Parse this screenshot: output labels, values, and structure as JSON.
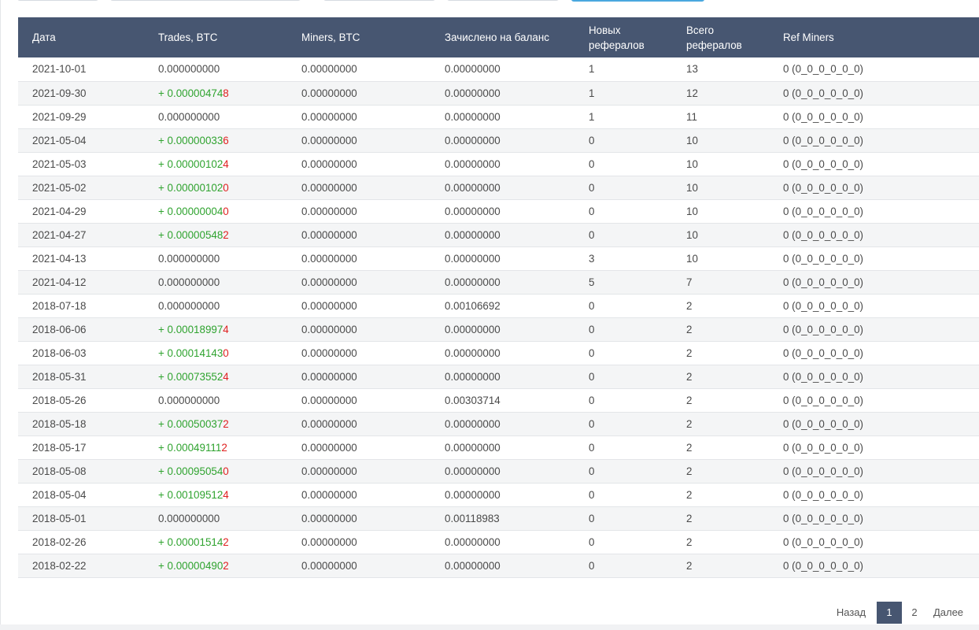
{
  "table": {
    "headers": {
      "date": "Дата",
      "trades": "Trades, BTC",
      "miners": "Miners, BTC",
      "credited": "Зачислено на баланс",
      "new_refs": "Новых рефералов",
      "total_refs": "Всего рефералов",
      "ref_miners": "Ref Miners"
    },
    "rows": [
      {
        "date": "2021-10-01",
        "trade_sign": "",
        "trade_main": "0.000000000",
        "trade_last": "",
        "miners": "0.00000000",
        "credited": "0.00000000",
        "credited_positive": false,
        "new_refs": "1",
        "total_refs": "13",
        "ref_miners": "0 (0_0_0_0_0_0)"
      },
      {
        "date": "2021-09-30",
        "trade_sign": "+ ",
        "trade_main": "0.00000474",
        "trade_last": "8",
        "miners": "0.00000000",
        "credited": "0.00000000",
        "credited_positive": false,
        "new_refs": "1",
        "total_refs": "12",
        "ref_miners": "0 (0_0_0_0_0_0)"
      },
      {
        "date": "2021-09-29",
        "trade_sign": "",
        "trade_main": "0.000000000",
        "trade_last": "",
        "miners": "0.00000000",
        "credited": "0.00000000",
        "credited_positive": false,
        "new_refs": "1",
        "total_refs": "11",
        "ref_miners": "0 (0_0_0_0_0_0)"
      },
      {
        "date": "2021-05-04",
        "trade_sign": "+ ",
        "trade_main": "0.00000033",
        "trade_last": "6",
        "miners": "0.00000000",
        "credited": "0.00000000",
        "credited_positive": false,
        "new_refs": "0",
        "total_refs": "10",
        "ref_miners": "0 (0_0_0_0_0_0)"
      },
      {
        "date": "2021-05-03",
        "trade_sign": "+ ",
        "trade_main": "0.00000102",
        "trade_last": "4",
        "miners": "0.00000000",
        "credited": "0.00000000",
        "credited_positive": false,
        "new_refs": "0",
        "total_refs": "10",
        "ref_miners": "0 (0_0_0_0_0_0)"
      },
      {
        "date": "2021-05-02",
        "trade_sign": "+ ",
        "trade_main": "0.00000102",
        "trade_last": "0",
        "miners": "0.00000000",
        "credited": "0.00000000",
        "credited_positive": false,
        "new_refs": "0",
        "total_refs": "10",
        "ref_miners": "0 (0_0_0_0_0_0)"
      },
      {
        "date": "2021-04-29",
        "trade_sign": "+ ",
        "trade_main": "0.00000004",
        "trade_last": "0",
        "miners": "0.00000000",
        "credited": "0.00000000",
        "credited_positive": false,
        "new_refs": "0",
        "total_refs": "10",
        "ref_miners": "0 (0_0_0_0_0_0)"
      },
      {
        "date": "2021-04-27",
        "trade_sign": "+ ",
        "trade_main": "0.00000548",
        "trade_last": "2",
        "miners": "0.00000000",
        "credited": "0.00000000",
        "credited_positive": false,
        "new_refs": "0",
        "total_refs": "10",
        "ref_miners": "0 (0_0_0_0_0_0)"
      },
      {
        "date": "2021-04-13",
        "trade_sign": "",
        "trade_main": "0.000000000",
        "trade_last": "",
        "miners": "0.00000000",
        "credited": "0.00000000",
        "credited_positive": false,
        "new_refs": "3",
        "total_refs": "10",
        "ref_miners": "0 (0_0_0_0_0_0)"
      },
      {
        "date": "2021-04-12",
        "trade_sign": "",
        "trade_main": "0.000000000",
        "trade_last": "",
        "miners": "0.00000000",
        "credited": "0.00000000",
        "credited_positive": false,
        "new_refs": "5",
        "total_refs": "7",
        "ref_miners": "0 (0_0_0_0_0_0)"
      },
      {
        "date": "2018-07-18",
        "trade_sign": "",
        "trade_main": "0.000000000",
        "trade_last": "",
        "miners": "0.00000000",
        "credited": "0.00106692",
        "credited_positive": true,
        "new_refs": "0",
        "total_refs": "2",
        "ref_miners": "0 (0_0_0_0_0_0)"
      },
      {
        "date": "2018-06-06",
        "trade_sign": "+ ",
        "trade_main": "0.00018997",
        "trade_last": "4",
        "miners": "0.00000000",
        "credited": "0.00000000",
        "credited_positive": false,
        "new_refs": "0",
        "total_refs": "2",
        "ref_miners": "0 (0_0_0_0_0_0)"
      },
      {
        "date": "2018-06-03",
        "trade_sign": "+ ",
        "trade_main": "0.00014143",
        "trade_last": "0",
        "miners": "0.00000000",
        "credited": "0.00000000",
        "credited_positive": false,
        "new_refs": "0",
        "total_refs": "2",
        "ref_miners": "0 (0_0_0_0_0_0)"
      },
      {
        "date": "2018-05-31",
        "trade_sign": "+ ",
        "trade_main": "0.00073552",
        "trade_last": "4",
        "miners": "0.00000000",
        "credited": "0.00000000",
        "credited_positive": false,
        "new_refs": "0",
        "total_refs": "2",
        "ref_miners": "0 (0_0_0_0_0_0)"
      },
      {
        "date": "2018-05-26",
        "trade_sign": "",
        "trade_main": "0.000000000",
        "trade_last": "",
        "miners": "0.00000000",
        "credited": "0.00303714",
        "credited_positive": true,
        "new_refs": "0",
        "total_refs": "2",
        "ref_miners": "0 (0_0_0_0_0_0)"
      },
      {
        "date": "2018-05-18",
        "trade_sign": "+ ",
        "trade_main": "0.00050037",
        "trade_last": "2",
        "miners": "0.00000000",
        "credited": "0.00000000",
        "credited_positive": false,
        "new_refs": "0",
        "total_refs": "2",
        "ref_miners": "0 (0_0_0_0_0_0)"
      },
      {
        "date": "2018-05-17",
        "trade_sign": "+ ",
        "trade_main": "0.00049111",
        "trade_last": "2",
        "miners": "0.00000000",
        "credited": "0.00000000",
        "credited_positive": false,
        "new_refs": "0",
        "total_refs": "2",
        "ref_miners": "0 (0_0_0_0_0_0)"
      },
      {
        "date": "2018-05-08",
        "trade_sign": "+ ",
        "trade_main": "0.00095054",
        "trade_last": "0",
        "miners": "0.00000000",
        "credited": "0.00000000",
        "credited_positive": false,
        "new_refs": "0",
        "total_refs": "2",
        "ref_miners": "0 (0_0_0_0_0_0)"
      },
      {
        "date": "2018-05-04",
        "trade_sign": "+ ",
        "trade_main": "0.00109512",
        "trade_last": "4",
        "miners": "0.00000000",
        "credited": "0.00000000",
        "credited_positive": false,
        "new_refs": "0",
        "total_refs": "2",
        "ref_miners": "0 (0_0_0_0_0_0)"
      },
      {
        "date": "2018-05-01",
        "trade_sign": "",
        "trade_main": "0.000000000",
        "trade_last": "",
        "miners": "0.00000000",
        "credited": "0.00118983",
        "credited_positive": true,
        "new_refs": "0",
        "total_refs": "2",
        "ref_miners": "0 (0_0_0_0_0_0)"
      },
      {
        "date": "2018-02-26",
        "trade_sign": "+ ",
        "trade_main": "0.00001514",
        "trade_last": "2",
        "miners": "0.00000000",
        "credited": "0.00000000",
        "credited_positive": false,
        "new_refs": "0",
        "total_refs": "2",
        "ref_miners": "0 (0_0_0_0_0_0)"
      },
      {
        "date": "2018-02-22",
        "trade_sign": "+ ",
        "trade_main": "0.00000490",
        "trade_last": "2",
        "miners": "0.00000000",
        "credited": "0.00000000",
        "credited_positive": false,
        "new_refs": "0",
        "total_refs": "2",
        "ref_miners": "0 (0_0_0_0_0_0)"
      }
    ]
  },
  "pagination": {
    "prev_label": "Назад",
    "pages": [
      "1",
      "2"
    ],
    "active_page": "1",
    "next_label": "Далее"
  },
  "colors": {
    "header_bg": "#475671",
    "positive": "#2fa32f",
    "negative_digit": "#e02020",
    "accent": "#4aa8df"
  }
}
